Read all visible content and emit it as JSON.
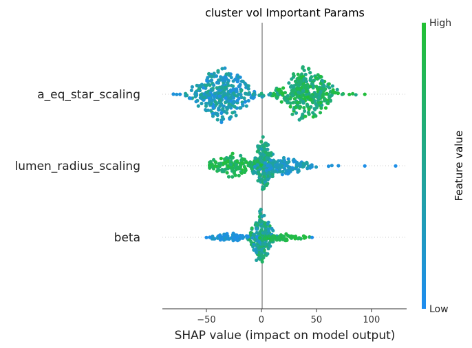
{
  "chart_data": {
    "type": "scatter",
    "subtype": "shap-beeswarm",
    "title": "cluster vol Important Params",
    "xlabel": "SHAP value (impact on model output)",
    "xlim": [
      -90,
      132
    ],
    "xticks": [
      -50,
      0,
      50,
      100
    ],
    "xtick_labels": [
      "−50",
      "0",
      "50",
      "100"
    ],
    "features": [
      {
        "name": "a_eq_star_scaling",
        "min": -80,
        "max": 94,
        "clusters": [
          {
            "center": -35,
            "spread": 14,
            "count": 340,
            "value_range": [
              0.05,
              0.55
            ],
            "max_height": 1.0
          },
          {
            "center": 40,
            "spread": 14,
            "count": 340,
            "value_range": [
              0.45,
              0.98
            ],
            "max_height": 1.0
          }
        ],
        "outliers": [
          {
            "x": -80,
            "v": 0.1
          },
          {
            "x": -77,
            "v": 0.15
          },
          {
            "x": -74,
            "v": 0.1
          },
          {
            "x": -12,
            "v": 0.4
          },
          {
            "x": -6,
            "v": 0.3
          },
          {
            "x": 12,
            "v": 0.9
          },
          {
            "x": 80,
            "v": 0.95
          },
          {
            "x": 83,
            "v": 0.9
          },
          {
            "x": 94,
            "v": 0.95
          }
        ]
      },
      {
        "name": "lumen_radius_scaling",
        "min": -47,
        "max": 122,
        "clusters": [
          {
            "center": 2,
            "spread": 5,
            "count": 240,
            "value_range": [
              0.3,
              0.75
            ],
            "max_height": 1.0
          },
          {
            "center": -25,
            "spread": 12,
            "count": 130,
            "value_range": [
              0.6,
              0.98
            ],
            "max_height": 0.45
          },
          {
            "center": 22,
            "spread": 12,
            "count": 110,
            "value_range": [
              0.1,
              0.45
            ],
            "max_height": 0.35
          }
        ],
        "outliers": [
          {
            "x": -47,
            "v": 0.9
          },
          {
            "x": -42,
            "v": 0.92
          },
          {
            "x": 45,
            "v": 0.2
          },
          {
            "x": 61,
            "v": 0.1
          },
          {
            "x": 64,
            "v": 0.15
          },
          {
            "x": 70,
            "v": 0.1
          },
          {
            "x": 94,
            "v": 0.05
          },
          {
            "x": 122,
            "v": 0.05
          }
        ]
      },
      {
        "name": "beta",
        "min": -50,
        "max": 46,
        "clusters": [
          {
            "center": 0,
            "spread": 5,
            "count": 260,
            "value_range": [
              0.2,
              0.85
            ],
            "max_height": 1.0
          },
          {
            "center": -28,
            "spread": 10,
            "count": 70,
            "value_range": [
              0.02,
              0.25
            ],
            "max_height": 0.15
          },
          {
            "center": 22,
            "spread": 10,
            "count": 60,
            "value_range": [
              0.75,
              0.98
            ],
            "max_height": 0.15
          }
        ],
        "outliers": [
          {
            "x": -50,
            "v": 0.05
          },
          {
            "x": -47,
            "v": 0.05
          },
          {
            "x": 40,
            "v": 0.95
          },
          {
            "x": 46,
            "v": 0.05
          }
        ]
      }
    ],
    "colorbar": {
      "label": "Feature value",
      "high_label": "High",
      "low_label": "Low",
      "low_color": "#1e8cf0",
      "high_color": "#22c033"
    },
    "grid": false
  }
}
